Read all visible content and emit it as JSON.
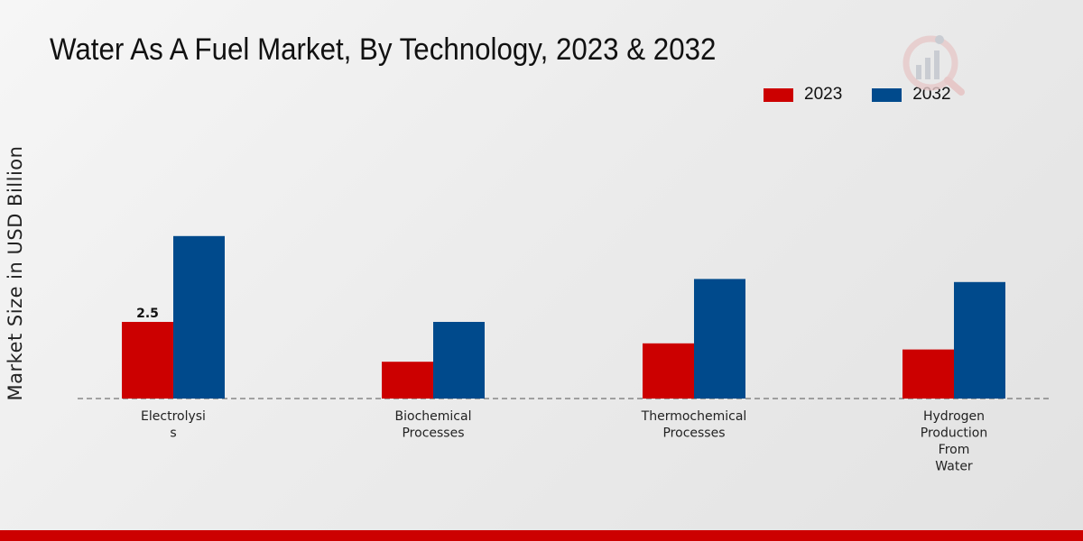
{
  "header": {
    "title": "Water As A Fuel Market, By Technology, 2023 & 2032"
  },
  "legend": {
    "items": [
      {
        "label": "2023",
        "color": "#cc0000"
      },
      {
        "label": "2032",
        "color": "#004a8c"
      }
    ]
  },
  "chart_data": {
    "type": "bar",
    "title": "Water As A Fuel Market, By Technology, 2023 & 2032",
    "xlabel": "",
    "ylabel": "Market Size in USD Billion",
    "categories": [
      [
        "Electrolysi",
        "s"
      ],
      [
        "Biochemical",
        "Processes"
      ],
      [
        "Thermochemical",
        "Processes"
      ],
      [
        "Hydrogen",
        "Production",
        "From",
        "Water"
      ]
    ],
    "series": [
      {
        "name": "2023",
        "color": "#cc0000",
        "values": [
          2.5,
          1.2,
          1.8,
          1.6
        ]
      },
      {
        "name": "2032",
        "color": "#004a8c",
        "values": [
          5.3,
          2.5,
          3.9,
          3.8
        ]
      }
    ],
    "data_labels": [
      {
        "series": 0,
        "index": 0,
        "text": "2.5"
      }
    ],
    "ylim": [
      0,
      8
    ],
    "grid": false,
    "legend_position": "top-right"
  }
}
